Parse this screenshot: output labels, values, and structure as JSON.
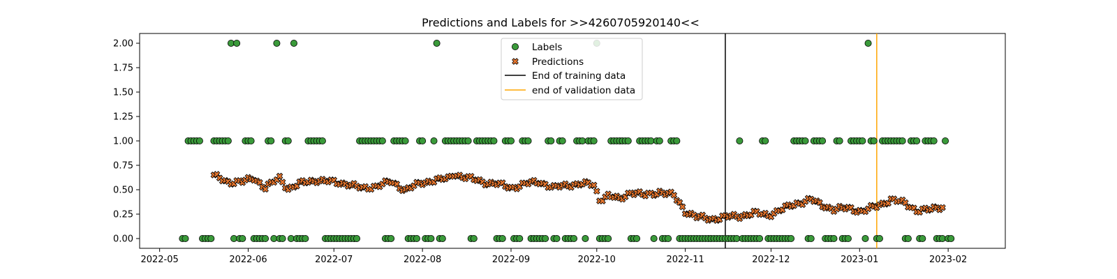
{
  "chart_data": {
    "type": "scatter",
    "title": "Predictions and Labels for >>4260705920140<<",
    "xlabel": "",
    "ylabel": "",
    "xlim": [
      "2022-04-24",
      "2023-02-21"
    ],
    "ylim": [
      -0.1,
      2.1
    ],
    "x_ticks": [
      "2022-05",
      "2022-06",
      "2022-07",
      "2022-08",
      "2022-09",
      "2022-10",
      "2022-11",
      "2022-12",
      "2023-01",
      "2023-02"
    ],
    "y_ticks": [
      "0.00",
      "0.25",
      "0.50",
      "0.75",
      "1.00",
      "1.25",
      "1.50",
      "1.75",
      "2.00"
    ],
    "grid": false,
    "legend_position": "top-center",
    "legend": {
      "labels": "Labels",
      "predictions": "Predictions",
      "train_end": "End of training data",
      "val_end": "end of validation data"
    },
    "colors": {
      "labels": "#3a9a3a",
      "predictions": "#e8772e",
      "train_end": "#000000",
      "val_end": "#ffa500"
    },
    "train_end_date": "2022-11-15",
    "val_end_date": "2023-01-07",
    "label_series": {
      "name": "Labels",
      "start_date": "2022-05-09",
      "end_date": "2023-02-02",
      "ones_ranges": [
        [
          "2022-05-11",
          "2022-05-15"
        ],
        [
          "2022-05-20",
          "2022-05-25"
        ],
        [
          "2022-05-28",
          "2022-05-28"
        ],
        [
          "2022-05-31",
          "2022-06-02"
        ],
        [
          "2022-06-08",
          "2022-06-09"
        ],
        [
          "2022-06-14",
          "2022-06-15"
        ],
        [
          "2022-06-22",
          "2022-06-27"
        ],
        [
          "2022-07-10",
          "2022-07-18"
        ],
        [
          "2022-07-22",
          "2022-07-26"
        ],
        [
          "2022-07-31",
          "2022-08-01"
        ],
        [
          "2022-08-05",
          "2022-08-06"
        ],
        [
          "2022-08-09",
          "2022-08-17"
        ],
        [
          "2022-08-20",
          "2022-08-26"
        ],
        [
          "2022-08-30",
          "2022-09-01"
        ],
        [
          "2022-09-05",
          "2022-09-07"
        ],
        [
          "2022-09-14",
          "2022-09-15"
        ],
        [
          "2022-09-18",
          "2022-09-19"
        ],
        [
          "2022-09-24",
          "2022-09-26"
        ],
        [
          "2022-09-28",
          "2022-09-30"
        ],
        [
          "2022-10-06",
          "2022-10-12"
        ],
        [
          "2022-10-16",
          "2022-10-20"
        ],
        [
          "2022-10-22",
          "2022-10-23"
        ],
        [
          "2022-10-27",
          "2022-10-29"
        ],
        [
          "2022-11-20",
          "2022-11-20"
        ],
        [
          "2022-11-28",
          "2022-11-29"
        ],
        [
          "2022-12-09",
          "2022-12-13"
        ],
        [
          "2022-12-16",
          "2022-12-19"
        ],
        [
          "2022-12-24",
          "2022-12-25"
        ],
        [
          "2022-12-29",
          "2023-01-02"
        ],
        [
          "2023-01-05",
          "2023-01-06"
        ],
        [
          "2023-01-09",
          "2023-01-16"
        ],
        [
          "2023-01-19",
          "2023-01-21"
        ],
        [
          "2023-01-24",
          "2023-01-27"
        ],
        [
          "2023-01-31",
          "2023-01-31"
        ]
      ],
      "twos": [
        "2022-05-26",
        "2022-05-28",
        "2022-06-11",
        "2022-06-17",
        "2022-08-06",
        "2022-10-01",
        "2023-01-04"
      ]
    },
    "prediction_series": {
      "name": "Predictions",
      "start_date": "2022-05-20",
      "end_date": "2023-01-30",
      "points": [
        [
          "2022-05-20",
          0.64
        ],
        [
          "2022-05-25",
          0.58
        ],
        [
          "2022-05-30",
          0.58
        ],
        [
          "2022-06-03",
          0.62
        ],
        [
          "2022-06-07",
          0.52
        ],
        [
          "2022-06-12",
          0.62
        ],
        [
          "2022-06-15",
          0.51
        ],
        [
          "2022-06-20",
          0.57
        ],
        [
          "2022-06-25",
          0.6
        ],
        [
          "2022-06-30",
          0.58
        ],
        [
          "2022-07-06",
          0.56
        ],
        [
          "2022-07-11",
          0.51
        ],
        [
          "2022-07-16",
          0.54
        ],
        [
          "2022-07-21",
          0.58
        ],
        [
          "2022-07-26",
          0.5
        ],
        [
          "2022-07-31",
          0.56
        ],
        [
          "2022-08-05",
          0.6
        ],
        [
          "2022-08-10",
          0.61
        ],
        [
          "2022-08-12",
          0.66
        ],
        [
          "2022-08-17",
          0.62
        ],
        [
          "2022-08-22",
          0.58
        ],
        [
          "2022-08-27",
          0.56
        ],
        [
          "2022-09-01",
          0.52
        ],
        [
          "2022-09-06",
          0.56
        ],
        [
          "2022-09-11",
          0.58
        ],
        [
          "2022-09-16",
          0.52
        ],
        [
          "2022-09-21",
          0.55
        ],
        [
          "2022-09-26",
          0.56
        ],
        [
          "2022-09-30",
          0.55
        ],
        [
          "2022-10-02",
          0.4
        ],
        [
          "2022-10-05",
          0.44
        ],
        [
          "2022-10-09",
          0.4
        ],
        [
          "2022-10-13",
          0.48
        ],
        [
          "2022-10-18",
          0.44
        ],
        [
          "2022-10-23",
          0.48
        ],
        [
          "2022-10-28",
          0.44
        ],
        [
          "2022-11-01",
          0.28
        ],
        [
          "2022-11-05",
          0.22
        ],
        [
          "2022-11-10",
          0.2
        ],
        [
          "2022-11-15",
          0.22
        ],
        [
          "2022-11-20",
          0.23
        ],
        [
          "2022-11-25",
          0.26
        ],
        [
          "2022-11-30",
          0.24
        ],
        [
          "2022-12-05",
          0.3
        ],
        [
          "2022-12-10",
          0.36
        ],
        [
          "2022-12-15",
          0.4
        ],
        [
          "2022-12-18",
          0.35
        ],
        [
          "2022-12-23",
          0.3
        ],
        [
          "2022-12-28",
          0.31
        ],
        [
          "2023-01-02",
          0.28
        ],
        [
          "2023-01-07",
          0.33
        ],
        [
          "2023-01-12",
          0.4
        ],
        [
          "2023-01-17",
          0.36
        ],
        [
          "2023-01-21",
          0.29
        ],
        [
          "2023-01-25",
          0.29
        ],
        [
          "2023-01-30",
          0.33
        ]
      ]
    }
  }
}
